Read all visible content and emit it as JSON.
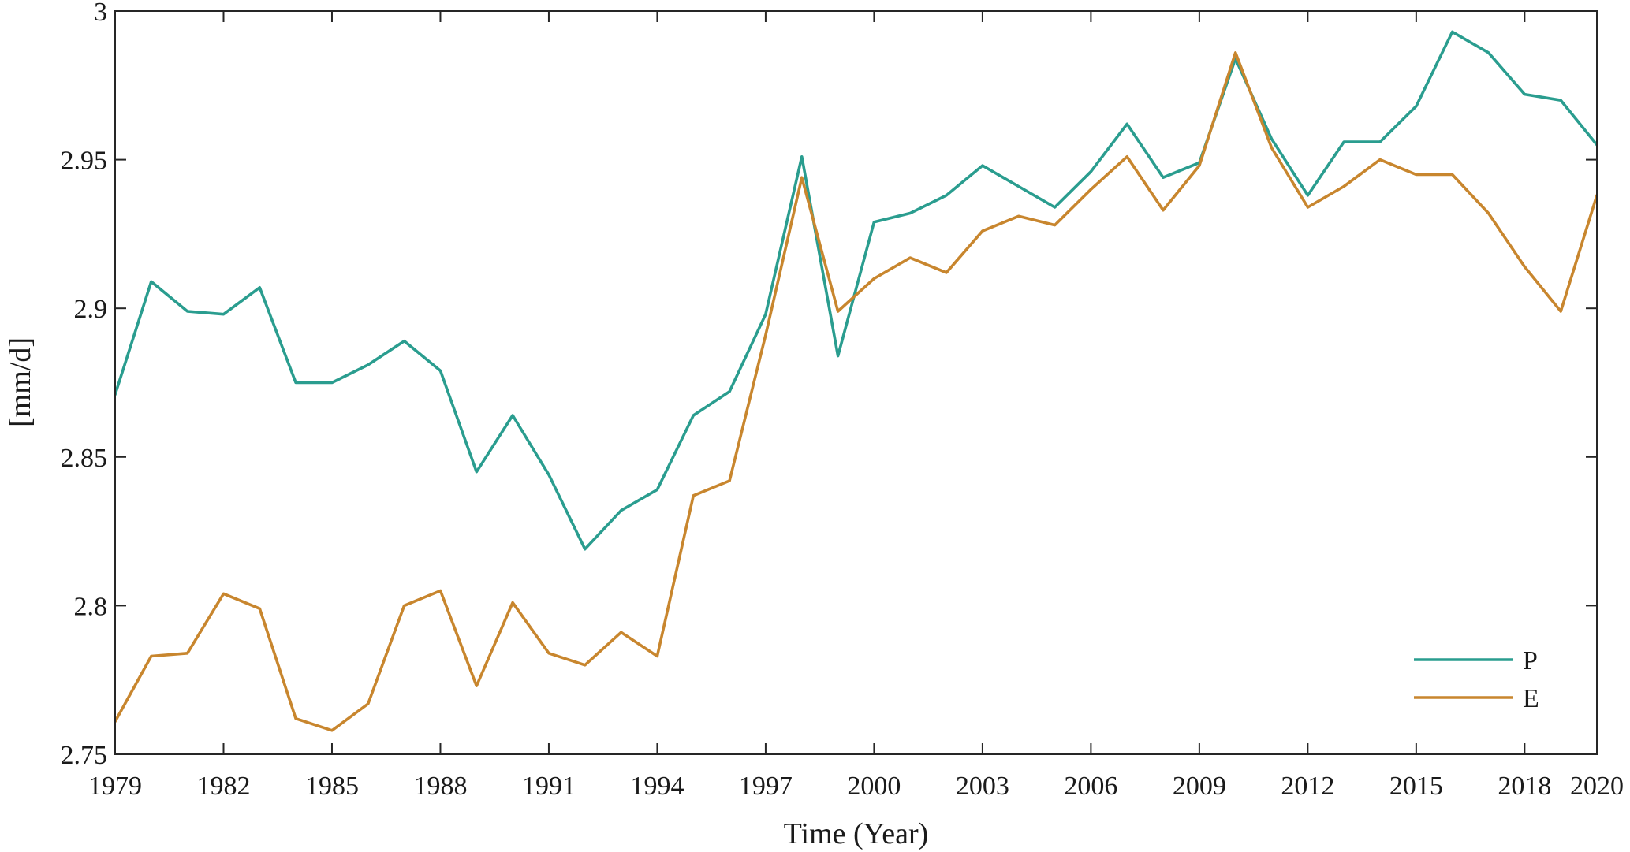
{
  "chart_data": {
    "type": "line",
    "title": "",
    "xlabel": "Time (Year)",
    "ylabel": "[mm/d]",
    "xlim": [
      1979,
      2020
    ],
    "ylim": [
      2.75,
      3.0
    ],
    "x_ticks": [
      1979,
      1982,
      1985,
      1988,
      1991,
      1994,
      1997,
      2000,
      2003,
      2006,
      2009,
      2012,
      2015,
      2018,
      2020
    ],
    "y_ticks": [
      2.75,
      2.8,
      2.85,
      2.9,
      2.95,
      3.0
    ],
    "y_tick_labels": [
      "2.75",
      "2.8",
      "2.85",
      "2.9",
      "2.95",
      "3"
    ],
    "grid": false,
    "legend_position": "bottom-right",
    "x": [
      1979,
      1980,
      1981,
      1982,
      1983,
      1984,
      1985,
      1986,
      1987,
      1988,
      1989,
      1990,
      1991,
      1992,
      1993,
      1994,
      1995,
      1996,
      1997,
      1998,
      1999,
      2000,
      2001,
      2002,
      2003,
      2004,
      2005,
      2006,
      2007,
      2008,
      2009,
      2010,
      2011,
      2012,
      2013,
      2014,
      2015,
      2016,
      2017,
      2018,
      2019,
      2020
    ],
    "series": [
      {
        "name": "P",
        "color": "#2a9d8f",
        "values": [
          2.871,
          2.909,
          2.899,
          2.898,
          2.907,
          2.875,
          2.875,
          2.881,
          2.889,
          2.879,
          2.845,
          2.864,
          2.844,
          2.819,
          2.832,
          2.839,
          2.864,
          2.872,
          2.898,
          2.951,
          2.884,
          2.929,
          2.932,
          2.938,
          2.948,
          2.941,
          2.934,
          2.946,
          2.962,
          2.944,
          2.949,
          2.984,
          2.957,
          2.938,
          2.956,
          2.956,
          2.968,
          2.993,
          2.986,
          2.972,
          2.97,
          2.955
        ]
      },
      {
        "name": "E",
        "color": "#c8862e",
        "values": [
          2.761,
          2.783,
          2.784,
          2.804,
          2.799,
          2.762,
          2.758,
          2.767,
          2.8,
          2.805,
          2.773,
          2.801,
          2.784,
          2.78,
          2.791,
          2.783,
          2.837,
          2.842,
          2.891,
          2.944,
          2.899,
          2.91,
          2.917,
          2.912,
          2.926,
          2.931,
          2.928,
          2.94,
          2.951,
          2.933,
          2.948,
          2.986,
          2.954,
          2.934,
          2.941,
          2.95,
          2.945,
          2.945,
          2.932,
          2.914,
          2.899,
          2.938
        ]
      }
    ]
  }
}
